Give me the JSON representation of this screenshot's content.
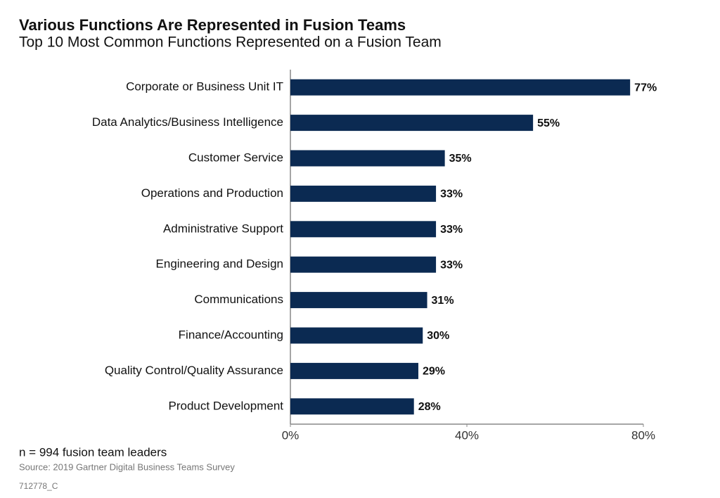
{
  "chart_data": {
    "type": "barh",
    "title": "Various Functions Are Represented in Fusion Teams",
    "subtitle": "Top 10 Most Common Functions Represented on a Fusion Team",
    "categories": [
      "Corporate or Business Unit IT",
      "Data Analytics/Business Intelligence",
      "Customer Service",
      "Operations and Production",
      "Administrative Support",
      "Engineering and Design",
      "Communications",
      "Finance/Accounting",
      "Quality Control/Quality Assurance",
      "Product Development"
    ],
    "values": [
      77,
      55,
      35,
      33,
      33,
      33,
      31,
      30,
      29,
      28
    ],
    "value_labels": [
      "77%",
      "55%",
      "35%",
      "33%",
      "33%",
      "33%",
      "31%",
      "30%",
      "29%",
      "28%"
    ],
    "color": "#0b2a52",
    "xlim": [
      0,
      80
    ],
    "xticks": [
      {
        "value": 0,
        "label": "0%"
      },
      {
        "value": 40,
        "label": "40%"
      },
      {
        "value": 80,
        "label": "80%"
      }
    ],
    "grid": false,
    "annotations": [
      "n = 994 fusion team leaders",
      "Source: 2019 Gartner Digital Business Teams Survey",
      "712778_C"
    ]
  }
}
